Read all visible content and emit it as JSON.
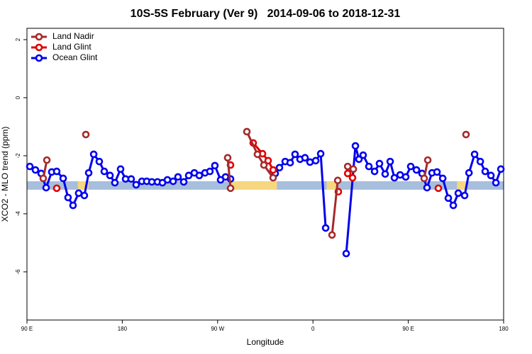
{
  "chart_data": {
    "type": "line",
    "title": "10S-5S February (Ver 9)   2014-09-06 to 2018-12-31",
    "x_label": "Longitude",
    "y_label": "XCO2 - MLO trend (ppm)",
    "xlim": [
      90,
      540
    ],
    "ylim": [
      -7.66,
      2.39
    ],
    "xticks": [
      {
        "value": 90,
        "label": "90 E"
      },
      180,
      {
        "value": 270,
        "label": "90 W"
      },
      {
        "value": 360,
        "label": "0"
      },
      {
        "value": 450,
        "label": "90 E"
      },
      {
        "value": 540,
        "label": "180"
      }
    ],
    "yticks": [
      2,
      0,
      -2,
      -4,
      -6
    ],
    "legend": "top-left",
    "band": {
      "ylim": [
        -3.17,
        -2.88
      ],
      "color": "#a7bedc",
      "land_color": "#f6d780",
      "land": [
        [
          138,
          148
        ],
        [
          282,
          326
        ],
        [
          373,
          383
        ],
        [
          496,
          506
        ]
      ]
    },
    "series": [
      {
        "name": "Land Nadir",
        "color": "#a52a2a",
        "x": [
          105.4,
          108.8,
          null,
          145.6,
          null,
          279.5,
          282.2,
          null,
          297.6,
          307.6,
          313.7,
          322.4,
          null,
          378,
          383.4,
          null,
          392.8,
          398.1,
          null,
          465,
          468.4,
          null,
          504.5
        ],
        "values": [
          -2.78,
          -2.15,
          null,
          -1.27,
          null,
          -2.07,
          -3.12,
          null,
          -1.17,
          -1.95,
          -2.32,
          -2.76,
          null,
          -4.73,
          -2.85,
          null,
          -2.37,
          -2.46,
          null,
          -2.78,
          -2.15,
          null,
          -1.27
        ]
      },
      {
        "name": "Land Glint",
        "color": "#e00000",
        "x": [
          118.1,
          null,
          282.2,
          null,
          303.6,
          312.4,
          317.7,
          322.4,
          null,
          384,
          null,
          392.8,
          397.4,
          null,
          478.4
        ],
        "values": [
          -3.12,
          null,
          -2.32,
          null,
          -1.56,
          -1.93,
          -2.17,
          -2.49,
          null,
          -3.24,
          null,
          -2.61,
          -2.76,
          null,
          -3.12
        ]
      },
      {
        "name": "Ocean Glint",
        "color": "#0000ee",
        "x": [
          92.7,
          98,
          103.4,
          108.1,
          113.4,
          118.1,
          124.2,
          128.8,
          133.5,
          138.8,
          144.2,
          148.3,
          153,
          158.3,
          163,
          168.4,
          173,
          178.4,
          183.1,
          188.4,
          193.1,
          198.5,
          203.1,
          207.9,
          213.2,
          217.9,
          222.6,
          228,
          232.6,
          238,
          242.7,
          248,
          252.7,
          258.1,
          262.7,
          267.4,
          272.8,
          277.5,
          282.2,
          null,
          324.4,
          328.4,
          333.8,
          338.5,
          343.1,
          347.8,
          352.5,
          357.2,
          362.6,
          367.3,
          372,
          null,
          391.4,
          400.1,
          403.4,
          407.4,
          412.8,
          418.2,
          422.8,
          428.2,
          432.9,
          436.9,
          442.3,
          447.6,
          452.3,
          457.7,
          463,
          467.7,
          472.4,
          477.1,
          482.5,
          487.8,
          492.5,
          497.2,
          503.2,
          507.3,
          512.6,
          518,
          522.6,
          528,
          532.7,
          537.4
        ],
        "values": [
          -2.37,
          -2.49,
          -2.61,
          -3.1,
          -2.56,
          -2.54,
          -2.78,
          -3.44,
          -3.71,
          -3.29,
          -3.37,
          -2.59,
          -1.95,
          -2.2,
          -2.54,
          -2.68,
          -2.93,
          -2.46,
          -2.8,
          -2.8,
          -3,
          -2.88,
          -2.88,
          -2.9,
          -2.9,
          -2.93,
          -2.83,
          -2.88,
          -2.73,
          -2.9,
          -2.68,
          -2.59,
          -2.68,
          -2.59,
          -2.54,
          -2.34,
          -2.83,
          -2.73,
          -2.8,
          null,
          -2.61,
          -2.41,
          -2.2,
          -2.24,
          -1.95,
          -2.12,
          -2.07,
          -2.22,
          -2.17,
          -1.93,
          -4.49,
          null,
          -5.37,
          -1.66,
          -2.12,
          -1.98,
          -2.37,
          -2.54,
          -2.27,
          -2.63,
          -2.2,
          -2.76,
          -2.66,
          -2.73,
          -2.37,
          -2.49,
          -2.61,
          -3.1,
          -2.59,
          -2.56,
          -2.78,
          -3.46,
          -3.71,
          -3.29,
          -3.37,
          -2.59,
          -1.95,
          -2.2,
          -2.54,
          -2.68,
          -2.93,
          -2.46
        ]
      }
    ]
  }
}
